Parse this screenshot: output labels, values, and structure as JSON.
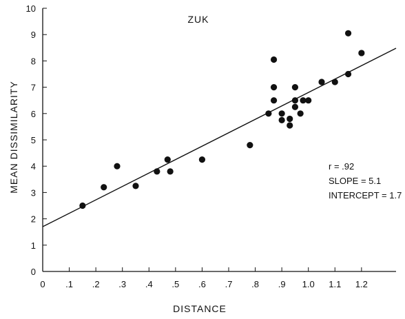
{
  "chart_data": {
    "type": "scatter",
    "title": "ZUK",
    "xlabel": "DISTANCE",
    "ylabel": "MEAN DISSIMILARITY",
    "xlim": [
      0,
      1.33
    ],
    "ylim": [
      0,
      10
    ],
    "x_ticks": [
      0,
      0.1,
      0.2,
      0.3,
      0.4,
      0.5,
      0.6,
      0.7,
      0.8,
      0.9,
      1.0,
      1.1,
      1.2
    ],
    "x_tick_labels": [
      "0",
      ".1",
      ".2",
      ".3",
      ".4",
      ".5",
      ".6",
      ".7",
      ".8",
      ".9",
      "1.0",
      "1.1",
      "1.2"
    ],
    "y_ticks": [
      0,
      1,
      2,
      3,
      4,
      5,
      6,
      7,
      8,
      9,
      10
    ],
    "y_tick_labels": [
      "0",
      "1",
      "2",
      "3",
      "4",
      "5",
      "6",
      "7",
      "8",
      "9",
      "10"
    ],
    "grid": false,
    "points": [
      {
        "x": 0.15,
        "y": 2.5
      },
      {
        "x": 0.23,
        "y": 3.2
      },
      {
        "x": 0.28,
        "y": 4.0
      },
      {
        "x": 0.35,
        "y": 3.25
      },
      {
        "x": 0.43,
        "y": 3.8
      },
      {
        "x": 0.47,
        "y": 4.25
      },
      {
        "x": 0.48,
        "y": 3.8
      },
      {
        "x": 0.6,
        "y": 4.25
      },
      {
        "x": 0.78,
        "y": 4.8
      },
      {
        "x": 0.85,
        "y": 6.0
      },
      {
        "x": 0.87,
        "y": 8.05
      },
      {
        "x": 0.87,
        "y": 7.0
      },
      {
        "x": 0.87,
        "y": 6.5
      },
      {
        "x": 0.9,
        "y": 6.0
      },
      {
        "x": 0.9,
        "y": 5.75
      },
      {
        "x": 0.93,
        "y": 5.8
      },
      {
        "x": 0.93,
        "y": 5.55
      },
      {
        "x": 0.95,
        "y": 7.0
      },
      {
        "x": 0.95,
        "y": 6.5
      },
      {
        "x": 0.95,
        "y": 6.25
      },
      {
        "x": 0.97,
        "y": 6.0
      },
      {
        "x": 0.98,
        "y": 6.5
      },
      {
        "x": 1.0,
        "y": 6.5
      },
      {
        "x": 1.05,
        "y": 7.2
      },
      {
        "x": 1.1,
        "y": 7.2
      },
      {
        "x": 1.15,
        "y": 9.05
      },
      {
        "x": 1.15,
        "y": 7.5
      },
      {
        "x": 1.2,
        "y": 8.3
      }
    ],
    "regression": {
      "slope": 5.1,
      "intercept": 1.7
    },
    "annotations": [
      "r = .92",
      "SLOPE = 5.1",
      "INTERCEPT = 1.7"
    ]
  }
}
